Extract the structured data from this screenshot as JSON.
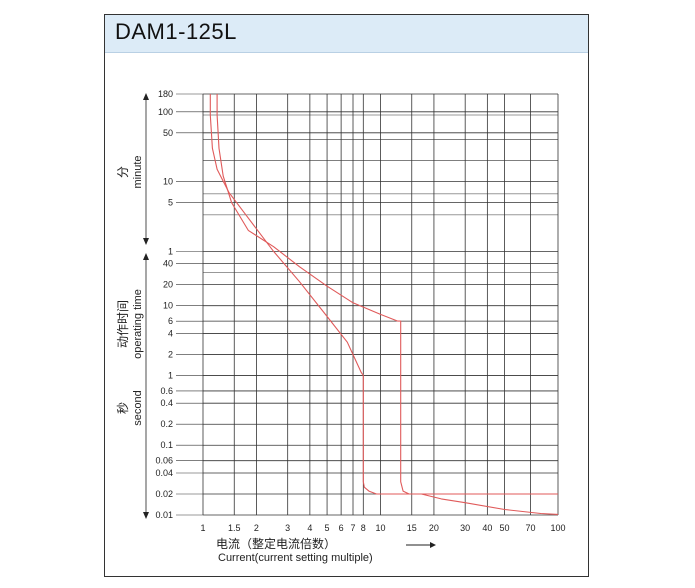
{
  "title": "DAM1-125L",
  "chart_data": {
    "type": "line",
    "title": "DAM1-125L",
    "xscale": "log",
    "yscale": "log",
    "xlim": [
      1,
      100
    ],
    "ylim_seconds": [
      0.01,
      10800
    ],
    "x_ticks": [
      1,
      1.5,
      2,
      3,
      4,
      5,
      6,
      7,
      8,
      10,
      15,
      20,
      30,
      40,
      50,
      70,
      100
    ],
    "x_tick_labels": [
      "1",
      "1.5",
      "2",
      "3",
      "4",
      "5",
      "6",
      "7",
      "8",
      "10",
      "15",
      "20",
      "30",
      "40",
      "50",
      "70",
      "100"
    ],
    "y_ticks_minutes": [
      180,
      100,
      50,
      10,
      5,
      1
    ],
    "y_tick_labels_minutes": [
      "180",
      "100",
      "50",
      "10",
      "5",
      "1"
    ],
    "y_ticks_seconds": [
      40,
      20,
      10,
      6,
      4,
      2,
      1,
      0.6,
      0.4,
      0.2,
      0.1,
      0.06,
      0.04,
      0.02,
      0.01
    ],
    "y_tick_labels_seconds": [
      "40",
      "20",
      "10",
      "6",
      "4",
      "2",
      "1",
      "0.6",
      "0.4",
      "0.2",
      "0.1",
      "0.06",
      "0.04",
      "0.02",
      "0.01"
    ],
    "xlabel_cn": "电流（整定电流倍数）",
    "xlabel_en": "Current(current setting multiple)",
    "ylabel_minute_cn": "分",
    "ylabel_minute_en": "minute",
    "ylabel_cn": "动作时间",
    "ylabel_en": "operating time",
    "ylabel_second_cn": "秒",
    "ylabel_second_en": "second",
    "grid": true,
    "series": [
      {
        "color": "#e05a5a",
        "x": [
          1.1,
          1.1,
          1.13,
          1.2,
          1.4,
          1.8,
          2.5,
          3.5,
          5,
          6.5,
          7.8,
          8,
          8,
          8.1,
          8.6,
          9.5,
          12,
          20,
          40,
          70,
          100
        ],
        "y": [
          10800,
          5400,
          1800,
          900,
          420,
          180,
          60,
          22,
          7,
          3,
          1.1,
          1.0,
          0.03,
          0.025,
          0.022,
          0.02,
          0.02,
          0.02,
          0.02,
          0.02,
          0.02
        ]
      },
      {
        "color": "#e05a5a",
        "x": [
          1.2,
          1.2,
          1.23,
          1.3,
          1.45,
          1.8,
          2.5,
          3.5,
          5,
          7,
          10,
          12.5,
          13,
          13,
          13,
          13.4,
          14.5,
          17,
          22,
          30,
          50,
          80,
          100
        ],
        "y": [
          10800,
          5400,
          1800,
          720,
          300,
          120,
          70,
          36,
          19,
          11,
          7.5,
          6,
          6,
          3,
          0.03,
          0.022,
          0.02,
          0.02,
          0.017,
          0.015,
          0.012,
          0.0105,
          0.0102
        ]
      }
    ]
  }
}
